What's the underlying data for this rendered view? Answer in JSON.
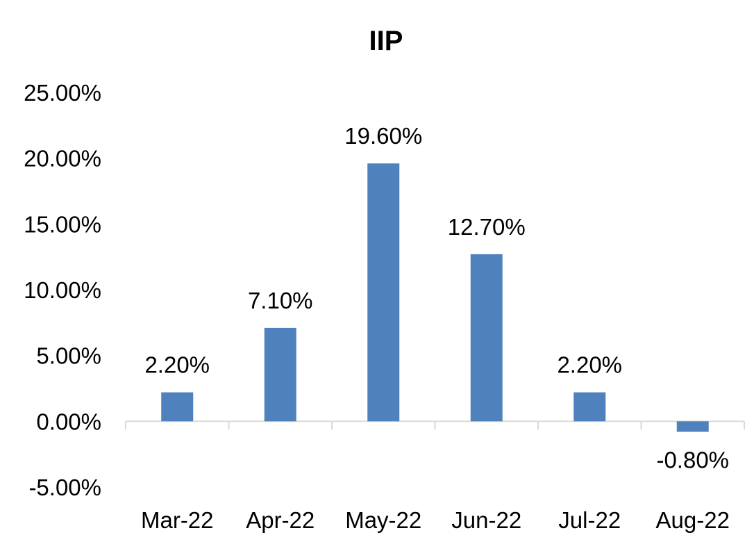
{
  "chart_data": {
    "type": "bar",
    "title": "IIP",
    "xlabel": "",
    "ylabel": "",
    "categories": [
      "Mar-22",
      "Apr-22",
      "May-22",
      "Jun-22",
      "Jul-22",
      "Aug-22"
    ],
    "values": [
      2.2,
      7.1,
      19.6,
      12.7,
      2.2,
      -0.8
    ],
    "data_labels": [
      "2.20%",
      "7.10%",
      "19.60%",
      "12.70%",
      "2.20%",
      "-0.80%"
    ],
    "ylim": [
      -5,
      25
    ],
    "yticks": [
      -5,
      0,
      5,
      10,
      15,
      20,
      25
    ],
    "ytick_labels": [
      "-5.00%",
      "0.00%",
      "5.00%",
      "10.00%",
      "15.00%",
      "20.00%",
      "25.00%"
    ],
    "grid": false,
    "legend": "none",
    "bar_color": "#4f81bd",
    "axis_color": "#d9d9d9"
  }
}
